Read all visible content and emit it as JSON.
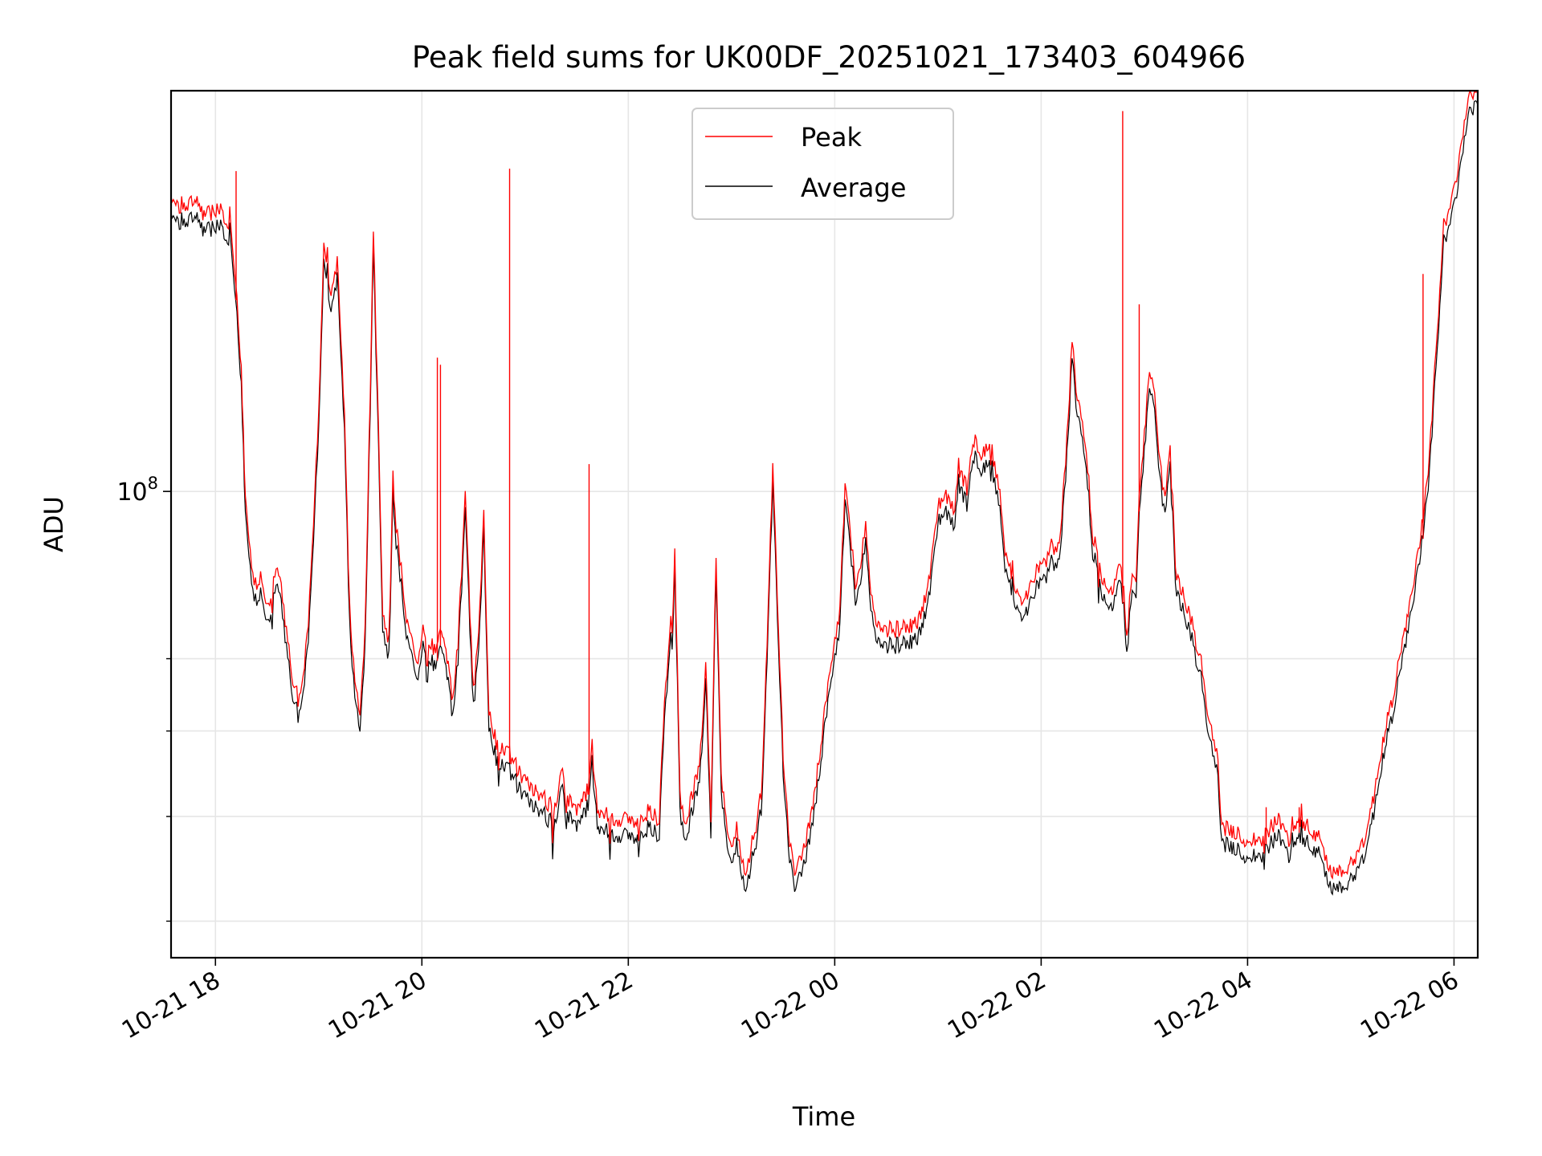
{
  "chart_data": {
    "type": "line",
    "title": "Peak field sums for UK00DF_20251021_173403_604966",
    "xlabel": "Time",
    "ylabel": "ADU",
    "y_scale": "log",
    "ylim": [
      37000000,
      235000000
    ],
    "y_major_tick": {
      "value": 100000000,
      "base": "10",
      "exponent": "8"
    },
    "y_minor_ticks": [
      40000000,
      50000000,
      60000000,
      70000000
    ],
    "xlim_hours": [
      -0.43,
      12.23
    ],
    "x_ticks": [
      {
        "label": "10-21 18",
        "hours": 0
      },
      {
        "label": "10-21 20",
        "hours": 2
      },
      {
        "label": "10-21 22",
        "hours": 4
      },
      {
        "label": "10-22 00",
        "hours": 6
      },
      {
        "label": "10-22 02",
        "hours": 8
      },
      {
        "label": "10-22 04",
        "hours": 10
      },
      {
        "label": "10-22 06",
        "hours": 12
      }
    ],
    "grid": true,
    "legend_position": "upper center",
    "series": [
      {
        "name": "Peak",
        "color": "#ff0000"
      },
      {
        "name": "Average",
        "color": "#000000"
      }
    ],
    "average_points": [
      [
        -0.43,
        182
      ],
      [
        -0.35,
        178
      ],
      [
        -0.2,
        180
      ],
      [
        -0.1,
        174
      ],
      [
        0.05,
        176
      ],
      [
        0.15,
        170
      ],
      [
        0.22,
        140
      ],
      [
        0.25,
        125
      ],
      [
        0.28,
        102
      ],
      [
        0.3,
        92
      ],
      [
        0.35,
        82
      ],
      [
        0.4,
        79
      ],
      [
        0.45,
        81
      ],
      [
        0.5,
        76
      ],
      [
        0.55,
        78
      ],
      [
        0.6,
        83
      ],
      [
        0.65,
        77
      ],
      [
        0.7,
        70
      ],
      [
        0.75,
        65
      ],
      [
        0.8,
        63
      ],
      [
        0.85,
        65
      ],
      [
        0.9,
        72
      ],
      [
        0.95,
        90
      ],
      [
        1.0,
        115
      ],
      [
        1.05,
        162
      ],
      [
        1.12,
        148
      ],
      [
        1.18,
        157
      ],
      [
        1.25,
        115
      ],
      [
        1.3,
        75
      ],
      [
        1.35,
        64
      ],
      [
        1.4,
        60
      ],
      [
        1.45,
        72
      ],
      [
        1.5,
        120
      ],
      [
        1.53,
        168
      ],
      [
        1.58,
        110
      ],
      [
        1.62,
        75
      ],
      [
        1.68,
        70
      ],
      [
        1.72,
        100
      ],
      [
        1.75,
        90
      ],
      [
        1.8,
        82
      ],
      [
        1.85,
        74
      ],
      [
        1.95,
        66
      ],
      [
        2.0,
        72
      ],
      [
        2.1,
        68
      ],
      [
        2.2,
        72
      ],
      [
        2.3,
        62
      ],
      [
        2.35,
        70
      ],
      [
        2.42,
        95
      ],
      [
        2.5,
        63
      ],
      [
        2.55,
        72
      ],
      [
        2.6,
        92
      ],
      [
        2.65,
        60
      ],
      [
        2.72,
        57
      ],
      [
        2.8,
        55
      ],
      [
        2.85,
        57
      ],
      [
        2.9,
        54
      ],
      [
        3.0,
        52
      ],
      [
        3.1,
        51
      ],
      [
        3.2,
        50
      ],
      [
        3.3,
        49
      ],
      [
        3.35,
        54
      ],
      [
        3.4,
        50
      ],
      [
        3.5,
        49
      ],
      [
        3.6,
        51
      ],
      [
        3.62,
        53
      ],
      [
        3.65,
        56
      ],
      [
        3.7,
        49
      ],
      [
        3.8,
        48.5
      ],
      [
        3.9,
        48
      ],
      [
        4.0,
        48
      ],
      [
        4.1,
        47.5
      ],
      [
        4.2,
        49
      ],
      [
        4.3,
        48
      ],
      [
        4.35,
        62
      ],
      [
        4.4,
        70
      ],
      [
        4.45,
        84
      ],
      [
        4.5,
        52
      ],
      [
        4.55,
        47
      ],
      [
        4.6,
        50
      ],
      [
        4.7,
        54
      ],
      [
        4.75,
        68
      ],
      [
        4.8,
        48
      ],
      [
        4.85,
        85
      ],
      [
        4.9,
        53
      ],
      [
        4.97,
        46
      ],
      [
        5.0,
        45
      ],
      [
        5.05,
        47
      ],
      [
        5.1,
        44
      ],
      [
        5.15,
        43
      ],
      [
        5.2,
        46
      ],
      [
        5.25,
        48
      ],
      [
        5.3,
        52
      ],
      [
        5.4,
        102
      ],
      [
        5.5,
        55
      ],
      [
        5.55,
        47
      ],
      [
        5.6,
        43
      ],
      [
        5.7,
        45
      ],
      [
        5.8,
        50
      ],
      [
        5.9,
        60
      ],
      [
        6.0,
        70
      ],
      [
        6.05,
        75
      ],
      [
        6.1,
        98
      ],
      [
        6.15,
        90
      ],
      [
        6.2,
        78
      ],
      [
        6.25,
        83
      ],
      [
        6.3,
        90
      ],
      [
        6.35,
        78
      ],
      [
        6.4,
        73
      ],
      [
        6.5,
        72
      ],
      [
        6.6,
        72
      ],
      [
        6.7,
        72.5
      ],
      [
        6.8,
        73
      ],
      [
        6.9,
        78
      ],
      [
        7.0,
        94
      ],
      [
        7.1,
        96
      ],
      [
        7.15,
        92
      ],
      [
        7.2,
        102
      ],
      [
        7.28,
        97
      ],
      [
        7.35,
        108
      ],
      [
        7.42,
        103
      ],
      [
        7.5,
        108
      ],
      [
        7.55,
        102
      ],
      [
        7.6,
        96
      ],
      [
        7.65,
        84
      ],
      [
        7.7,
        82
      ],
      [
        7.8,
        76
      ],
      [
        7.9,
        79
      ],
      [
        8.0,
        83
      ],
      [
        8.05,
        83
      ],
      [
        8.1,
        86
      ],
      [
        8.15,
        84
      ],
      [
        8.2,
        92
      ],
      [
        8.25,
        108
      ],
      [
        8.3,
        132
      ],
      [
        8.35,
        118
      ],
      [
        8.4,
        112
      ],
      [
        8.45,
        102
      ],
      [
        8.5,
        88
      ],
      [
        8.6,
        80
      ],
      [
        8.7,
        78
      ],
      [
        8.75,
        84
      ],
      [
        8.8,
        78
      ],
      [
        8.83,
        70
      ],
      [
        8.87,
        80
      ],
      [
        8.92,
        80
      ],
      [
        8.95,
        95
      ],
      [
        9.0,
        108
      ],
      [
        9.05,
        125
      ],
      [
        9.1,
        118
      ],
      [
        9.15,
        102
      ],
      [
        9.2,
        95
      ],
      [
        9.25,
        108
      ],
      [
        9.3,
        82
      ],
      [
        9.35,
        79
      ],
      [
        9.45,
        74
      ],
      [
        9.5,
        70
      ],
      [
        9.55,
        67
      ],
      [
        9.6,
        62
      ],
      [
        9.65,
        58
      ],
      [
        9.7,
        56
      ],
      [
        9.75,
        47
      ],
      [
        9.85,
        47
      ],
      [
        9.95,
        46
      ],
      [
        10.05,
        46
      ],
      [
        10.15,
        46
      ],
      [
        10.25,
        47.5
      ],
      [
        10.3,
        48
      ],
      [
        10.4,
        46
      ],
      [
        10.5,
        48
      ],
      [
        10.6,
        47
      ],
      [
        10.7,
        46
      ],
      [
        10.75,
        44
      ],
      [
        10.8,
        43
      ],
      [
        10.9,
        43
      ],
      [
        11.0,
        44
      ],
      [
        11.1,
        45
      ],
      [
        11.2,
        49
      ],
      [
        11.3,
        56
      ],
      [
        11.4,
        62
      ],
      [
        11.5,
        70
      ],
      [
        11.6,
        78
      ],
      [
        11.7,
        92
      ],
      [
        11.75,
        100
      ],
      [
        11.8,
        118
      ],
      [
        11.85,
        140
      ],
      [
        11.9,
        170
      ],
      [
        11.95,
        175
      ],
      [
        12.0,
        185
      ],
      [
        12.05,
        195
      ],
      [
        12.1,
        210
      ],
      [
        12.15,
        226
      ],
      [
        12.23,
        228
      ]
    ],
    "peak_spikes": [
      {
        "hours": 0.2,
        "value": 198
      },
      {
        "hours": 2.15,
        "value": 133
      },
      {
        "hours": 2.18,
        "value": 131
      },
      {
        "hours": 2.85,
        "value": 199
      },
      {
        "hours": 3.62,
        "value": 106
      },
      {
        "hours": 8.79,
        "value": 225
      },
      {
        "hours": 8.95,
        "value": 149
      },
      {
        "hours": 10.18,
        "value": 51
      },
      {
        "hours": 10.5,
        "value": 51
      },
      {
        "hours": 11.7,
        "value": 159
      }
    ]
  },
  "legend": {
    "entries": [
      {
        "label": "Peak"
      },
      {
        "label": "Average"
      }
    ]
  }
}
